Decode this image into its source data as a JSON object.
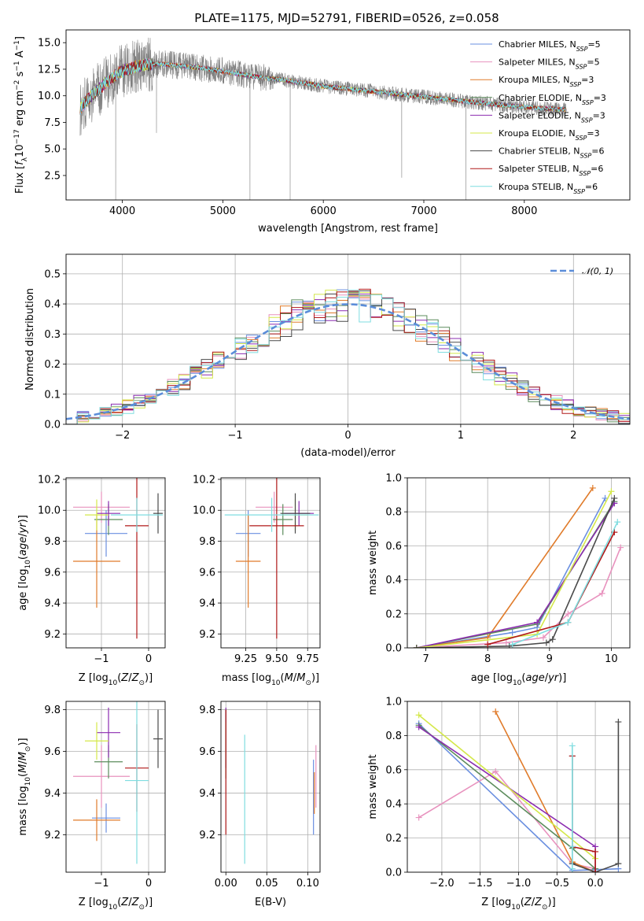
{
  "figure": {
    "title": "PLATE=1175, MJD=52791, FIBERID=0526, z=0.058"
  },
  "colors": {
    "Chabrier MILES": "#6a8fe0",
    "Salpeter MILES": "#e892be",
    "Kroupa MILES": "#e07b2a",
    "Chabrier ELODIE": "#5c8c5c",
    "Salpeter ELODIE": "#8b2cb0",
    "Kroupa ELODIE": "#d4e84a",
    "Chabrier STELIB": "#4a4a4a",
    "Salpeter STELIB": "#b01818",
    "Kroupa STELIB": "#7fdde0",
    "data": "#808080"
  },
  "legend_spectrum": [
    {
      "name": "Chabrier MILES",
      "n": "5"
    },
    {
      "name": "Salpeter MILES",
      "n": "5"
    },
    {
      "name": "Kroupa MILES",
      "n": "3"
    },
    {
      "name": "Chabrier ELODIE",
      "n": "3"
    },
    {
      "name": "Salpeter ELODIE",
      "n": "3"
    },
    {
      "name": "Kroupa ELODIE",
      "n": "3"
    },
    {
      "name": "Chabrier STELIB",
      "n": "6"
    },
    {
      "name": "Salpeter STELIB",
      "n": "6"
    },
    {
      "name": "Kroupa STELIB",
      "n": "6"
    }
  ],
  "chart_data": [
    {
      "id": "spectrum",
      "type": "line",
      "title": "PLATE=1175, MJD=52791, FIBERID=0526, z=0.058",
      "xlabel": "wavelength [Angstrom, rest frame]",
      "ylabel": "Flux [f_λ 10^-17 erg cm^-2 s^-1 A^-1]",
      "xlim": [
        3440,
        9050
      ],
      "ylim": [
        0.2,
        16.2
      ],
      "xticks": [
        4000,
        5000,
        6000,
        7000,
        8000
      ],
      "yticks": [
        2.5,
        5.0,
        7.5,
        10.0,
        12.5,
        15.0
      ],
      "grid": false,
      "legend": "top-right",
      "continuum": {
        "x": [
          3580,
          3650,
          3750,
          3850,
          3950,
          4050,
          4200,
          4400,
          4600,
          4800,
          5000,
          5200,
          5400,
          5600,
          5800,
          6000,
          6200,
          6400,
          6600,
          6800,
          7000,
          7200,
          7400,
          7600,
          7800,
          8000,
          8200,
          8400
        ],
        "y": [
          8.8,
          9.6,
          10.5,
          11.3,
          12.1,
          12.5,
          12.9,
          13.0,
          12.8,
          12.6,
          12.3,
          12.0,
          11.7,
          11.5,
          11.2,
          10.9,
          10.7,
          10.5,
          10.3,
          10.1,
          9.9,
          9.7,
          9.5,
          9.3,
          9.1,
          8.95,
          8.8,
          8.7
        ]
      },
      "absorption_features": [
        {
          "x": 3934,
          "depth_to": 0.2
        },
        {
          "x": 4340,
          "depth_to": 6.5
        },
        {
          "x": 5270,
          "depth_to": 0.2
        },
        {
          "x": 5670,
          "depth_to": 0.2
        },
        {
          "x": 6780,
          "depth_to": 2.3
        },
        {
          "x": 7420,
          "depth_to": 0.2
        }
      ]
    },
    {
      "id": "residuals",
      "type": "line",
      "xlabel": "(data-model)/error",
      "ylabel": "Normed distribution",
      "xlim": [
        -2.5,
        2.5
      ],
      "ylim": [
        0,
        0.565
      ],
      "xticks": [
        -2,
        -1,
        0,
        1,
        2
      ],
      "yticks": [
        0.0,
        0.1,
        0.2,
        0.3,
        0.4,
        0.5
      ],
      "grid": true,
      "legend": "top-right",
      "reference_label": "𝒩(0, 1)",
      "reference_color": "#5b8dd9",
      "bin_width": 0.1
    },
    {
      "id": "age-vs-Z",
      "type": "scatter",
      "xlabel": "Z [log10(Z/Z⊙)]",
      "ylabel": "age [log10(age/yr)]",
      "xlim": [
        -1.75,
        0.35
      ],
      "ylim": [
        9.11,
        10.21
      ],
      "xticks": [
        -1,
        0
      ],
      "yticks": [
        9.2,
        9.4,
        9.6,
        9.8,
        10.0,
        10.2
      ],
      "grid": true,
      "points": [
        {
          "model": "Chabrier MILES",
          "x": -0.9,
          "y": 9.85,
          "xerr": 0.45,
          "yerr": 0.15
        },
        {
          "model": "Salpeter MILES",
          "x": -1.0,
          "y": 10.02,
          "xerr": 0.6,
          "yerr": 0.1
        },
        {
          "model": "Kroupa MILES",
          "x": -1.1,
          "y": 9.67,
          "xerr": 0.5,
          "yerr": 0.3
        },
        {
          "model": "Chabrier ELODIE",
          "x": -0.85,
          "y": 9.94,
          "xerr": 0.3,
          "yerr": 0.1
        },
        {
          "model": "Salpeter ELODIE",
          "x": -0.85,
          "y": 9.98,
          "xerr": 0.25,
          "yerr": 0.08
        },
        {
          "model": "Kroupa ELODIE",
          "x": -1.1,
          "y": 9.97,
          "xerr": 0.25,
          "yerr": 0.1
        },
        {
          "model": "Chabrier STELIB",
          "x": 0.2,
          "y": 9.98,
          "xerr": 0.1,
          "yerr": 0.13
        },
        {
          "model": "Salpeter STELIB",
          "x": -0.25,
          "y": 9.9,
          "xerr": 0.25,
          "yerr": 0.73
        },
        {
          "model": "Kroupa STELIB",
          "x": -0.25,
          "y": 9.97,
          "xerr": 0.55,
          "yerr": 0.11
        }
      ]
    },
    {
      "id": "age-vs-mass",
      "type": "scatter",
      "xlabel": "mass [log10(M/M⊙)]",
      "ylabel": "",
      "xlim": [
        9.05,
        9.85
      ],
      "ylim": [
        9.11,
        10.21
      ],
      "xticks": [
        9.25,
        9.5,
        9.75
      ],
      "yticks": [
        9.2,
        9.4,
        9.6,
        9.8,
        10.0,
        10.2
      ],
      "grid": true,
      "points": [
        {
          "model": "Chabrier MILES",
          "x": 9.27,
          "y": 9.85,
          "xerr": 0.1,
          "yerr": 0.15
        },
        {
          "model": "Salpeter MILES",
          "x": 9.48,
          "y": 10.02,
          "xerr": 0.15,
          "yerr": 0.1
        },
        {
          "model": "Kroupa MILES",
          "x": 9.27,
          "y": 9.67,
          "xerr": 0.1,
          "yerr": 0.3
        },
        {
          "model": "Chabrier ELODIE",
          "x": 9.55,
          "y": 9.94,
          "xerr": 0.08,
          "yerr": 0.1
        },
        {
          "model": "Salpeter ELODIE",
          "x": 9.68,
          "y": 9.98,
          "xerr": 0.12,
          "yerr": 0.08
        },
        {
          "model": "Kroupa ELODIE",
          "x": 9.65,
          "y": 9.97,
          "xerr": 0.1,
          "yerr": 0.1
        },
        {
          "model": "Chabrier STELIB",
          "x": 9.65,
          "y": 9.98,
          "xerr": 0.12,
          "yerr": 0.13
        },
        {
          "model": "Salpeter STELIB",
          "x": 9.5,
          "y": 9.9,
          "xerr": 0.22,
          "yerr": 0.73
        },
        {
          "model": "Kroupa STELIB",
          "x": 9.46,
          "y": 9.97,
          "xerr": 0.38,
          "yerr": 0.11
        }
      ]
    },
    {
      "id": "mass-weight-vs-age",
      "type": "line",
      "xlabel": "age [log10(age/yr)]",
      "ylabel": "mass weight",
      "xlim": [
        6.7,
        10.3
      ],
      "ylim": [
        0,
        1
      ],
      "xticks": [
        7,
        8,
        9,
        10
      ],
      "yticks": [
        0.0,
        0.2,
        0.4,
        0.6,
        0.8,
        1.0
      ],
      "grid": true,
      "series": [
        {
          "model": "Chabrier MILES",
          "x": [
            6.85,
            8.4,
            8.8,
            9.9
          ],
          "y": [
            0.0,
            0.09,
            0.12,
            0.88
          ]
        },
        {
          "model": "Salpeter MILES",
          "x": [
            6.85,
            8.3,
            8.9,
            9.3,
            9.85,
            10.15
          ],
          "y": [
            0.0,
            0.03,
            0.06,
            0.2,
            0.32,
            0.59
          ]
        },
        {
          "model": "Kroupa MILES",
          "x": [
            6.85,
            8.0,
            9.7
          ],
          "y": [
            0.0,
            0.06,
            0.94
          ]
        },
        {
          "model": "Chabrier ELODIE",
          "x": [
            6.85,
            8.8,
            10.05
          ],
          "y": [
            0.0,
            0.14,
            0.86
          ]
        },
        {
          "model": "Salpeter ELODIE",
          "x": [
            6.85,
            8.8,
            10.05
          ],
          "y": [
            0.0,
            0.15,
            0.85
          ]
        },
        {
          "model": "Kroupa ELODIE",
          "x": [
            6.85,
            8.8,
            10.0
          ],
          "y": [
            0.0,
            0.08,
            0.92
          ]
        },
        {
          "model": "Chabrier STELIB",
          "x": [
            6.85,
            8.35,
            8.95,
            9.05,
            10.05
          ],
          "y": [
            0.0,
            0.01,
            0.03,
            0.05,
            0.88
          ]
        },
        {
          "model": "Salpeter STELIB",
          "x": [
            8.0,
            9.3,
            10.05
          ],
          "y": [
            0.02,
            0.15,
            0.68
          ]
        },
        {
          "model": "Kroupa STELIB",
          "x": [
            8.4,
            9.3,
            10.1
          ],
          "y": [
            0.02,
            0.15,
            0.74
          ]
        }
      ]
    },
    {
      "id": "mass-vs-Z",
      "type": "scatter",
      "xlabel": "Z [log10(Z/Z⊙)]",
      "ylabel": "mass [log10(M/M⊙)]",
      "xlim": [
        -1.75,
        0.35
      ],
      "ylim": [
        9.02,
        9.84
      ],
      "xticks": [
        -1,
        0
      ],
      "yticks": [
        9.2,
        9.4,
        9.6,
        9.8
      ],
      "grid": true,
      "points": [
        {
          "model": "Chabrier MILES",
          "x": -0.9,
          "y": 9.28,
          "xerr": 0.3,
          "yerr": 0.07
        },
        {
          "model": "Salpeter MILES",
          "x": -1.0,
          "y": 9.48,
          "xerr": 0.6,
          "yerr": 0.15
        },
        {
          "model": "Kroupa MILES",
          "x": -1.1,
          "y": 9.27,
          "xerr": 0.5,
          "yerr": 0.1
        },
        {
          "model": "Chabrier ELODIE",
          "x": -0.85,
          "y": 9.55,
          "xerr": 0.3,
          "yerr": 0.08
        },
        {
          "model": "Salpeter ELODIE",
          "x": -0.85,
          "y": 9.69,
          "xerr": 0.25,
          "yerr": 0.12
        },
        {
          "model": "Kroupa ELODIE",
          "x": -1.1,
          "y": 9.65,
          "xerr": 0.25,
          "yerr": 0.09
        },
        {
          "model": "Chabrier STELIB",
          "x": 0.2,
          "y": 9.66,
          "xerr": 0.1,
          "yerr": 0.14
        },
        {
          "model": "Salpeter STELIB",
          "x": -0.25,
          "y": 9.52,
          "xerr": 0.25,
          "yerr": 0.21
        },
        {
          "model": "Kroupa STELIB",
          "x": -0.25,
          "y": 9.46,
          "xerr": 0.25,
          "yerr": 0.4
        }
      ]
    },
    {
      "id": "mass-vs-ebv",
      "type": "scatter",
      "xlabel": "E(B-V)",
      "ylabel": "",
      "xlim": [
        -0.006,
        0.115
      ],
      "ylim": [
        9.02,
        9.84
      ],
      "xticks": [
        0.0,
        0.05,
        0.1
      ],
      "yticks": [
        9.2,
        9.4,
        9.6,
        9.8
      ],
      "grid": true,
      "points": [
        {
          "model": "Chabrier MILES",
          "x": 0.107,
          "y": 9.38,
          "xerr": 0,
          "yerr": 0.18
        },
        {
          "model": "Salpeter MILES",
          "x": 0.11,
          "y": 9.48,
          "xerr": 0,
          "yerr": 0.15
        },
        {
          "model": "Kroupa MILES",
          "x": 0.108,
          "y": 9.4,
          "xerr": 0,
          "yerr": 0.1
        },
        {
          "model": "Chabrier ELODIE",
          "x": 0.0,
          "y": 9.55,
          "xerr": 0,
          "yerr": 0.08
        },
        {
          "model": "Salpeter ELODIE",
          "x": 0.0,
          "y": 9.69,
          "xerr": 0,
          "yerr": 0.12
        },
        {
          "model": "Kroupa ELODIE",
          "x": 0.0,
          "y": 9.65,
          "xerr": 0,
          "yerr": 0.09
        },
        {
          "model": "Chabrier STELIB",
          "x": 0.0,
          "y": 9.66,
          "xerr": 0,
          "yerr": 0.14
        },
        {
          "model": "Salpeter STELIB",
          "x": 0.0,
          "y": 9.5,
          "xerr": 0,
          "yerr": 0.3
        },
        {
          "model": "Kroupa STELIB",
          "x": 0.023,
          "y": 9.37,
          "xerr": 0,
          "yerr": 0.31
        }
      ]
    },
    {
      "id": "mass-weight-vs-Z",
      "type": "line",
      "xlabel": "Z [log10(Z/Z⊙)]",
      "ylabel": "mass weight",
      "xlim": [
        -2.45,
        0.45
      ],
      "ylim": [
        0,
        1
      ],
      "xticks": [
        -2.0,
        -1.5,
        -1.0,
        -0.5,
        0.0
      ],
      "yticks": [
        0.0,
        0.2,
        0.4,
        0.6,
        0.8,
        1.0
      ],
      "grid": true,
      "series": [
        {
          "model": "Chabrier MILES",
          "x": [
            -2.3,
            -0.3,
            0.3
          ],
          "y": [
            0.87,
            0.01,
            0.02
          ]
        },
        {
          "model": "Salpeter MILES",
          "x": [
            -2.3,
            -1.3,
            -0.3,
            0.0
          ],
          "y": [
            0.32,
            0.59,
            0.05,
            0.02
          ]
        },
        {
          "model": "Kroupa MILES",
          "x": [
            -1.3,
            -0.3,
            0.0
          ],
          "y": [
            0.94,
            0.06,
            0.0
          ]
        },
        {
          "model": "Chabrier ELODIE",
          "x": [
            -2.3,
            -0.3,
            0.0
          ],
          "y": [
            0.86,
            0.14,
            0.02
          ]
        },
        {
          "model": "Salpeter ELODIE",
          "x": [
            -2.3,
            0.0,
            0.0
          ],
          "y": [
            0.85,
            0.15,
            0.0
          ]
        },
        {
          "model": "Kroupa ELODIE",
          "x": [
            -2.3,
            0.0
          ],
          "y": [
            0.92,
            0.08
          ]
        },
        {
          "model": "Chabrier STELIB",
          "x": [
            -0.3,
            -0.3,
            0.0,
            0.3,
            0.3
          ],
          "y": [
            0.68,
            0.05,
            0.0,
            0.05,
            0.88
          ]
        },
        {
          "model": "Salpeter STELIB",
          "x": [
            -0.3,
            -0.3,
            0.0,
            0.0
          ],
          "y": [
            0.68,
            0.15,
            0.12,
            0.0
          ]
        },
        {
          "model": "Kroupa STELIB",
          "x": [
            -0.3,
            -0.3,
            -0.3
          ],
          "y": [
            0.74,
            0.15,
            0.02
          ]
        }
      ]
    }
  ]
}
